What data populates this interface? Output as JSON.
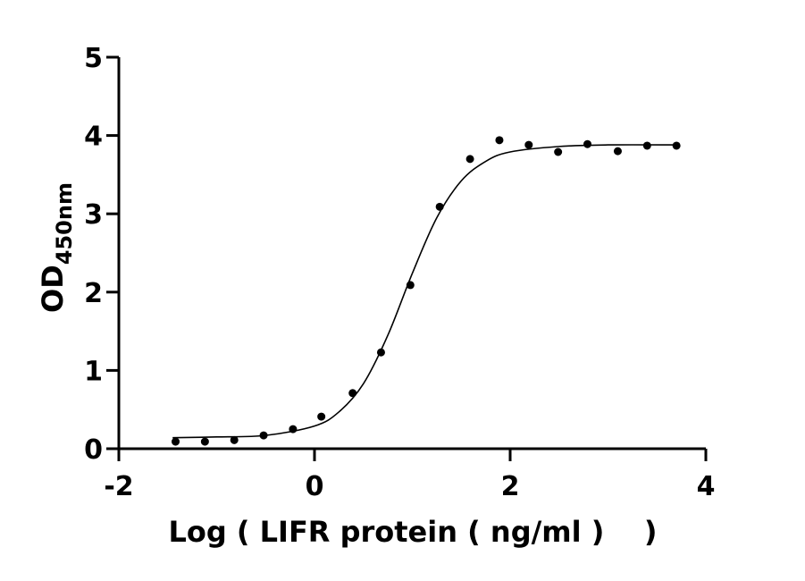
{
  "chart_data": {
    "type": "scatter",
    "x_label": "Log ( LIFR protein ( ng/ml )    )",
    "y_label": "OD",
    "y_label_subscript": "450nm",
    "xlim": [
      -2,
      4
    ],
    "xticks": [
      -2,
      0,
      2,
      4
    ],
    "ylim": [
      0,
      5
    ],
    "yticks": [
      0,
      1,
      2,
      3,
      4,
      5
    ],
    "grid": false,
    "series": [
      {
        "kind": "points",
        "color": "#000000",
        "x": [
          -1.42,
          -1.12,
          -0.82,
          -0.52,
          -0.22,
          0.07,
          0.39,
          0.68,
          0.98,
          1.28,
          1.59,
          1.89,
          2.19,
          2.49,
          2.79,
          3.1,
          3.4,
          3.7
        ],
        "values": [
          0.09,
          0.09,
          0.11,
          0.17,
          0.25,
          0.41,
          0.71,
          1.23,
          2.09,
          3.09,
          3.7,
          3.94,
          3.88,
          3.79,
          3.89,
          3.8,
          3.87,
          3.87
        ]
      },
      {
        "kind": "curve",
        "color": "#000000",
        "x": [
          -1.45,
          -1,
          -0.5,
          0,
          0.25,
          0.5,
          0.75,
          1,
          1.25,
          1.5,
          1.75,
          2,
          2.5,
          3,
          3.7
        ],
        "values": [
          0.14,
          0.15,
          0.17,
          0.29,
          0.47,
          0.83,
          1.45,
          2.24,
          2.95,
          3.42,
          3.67,
          3.79,
          3.86,
          3.88,
          3.88
        ]
      }
    ]
  }
}
